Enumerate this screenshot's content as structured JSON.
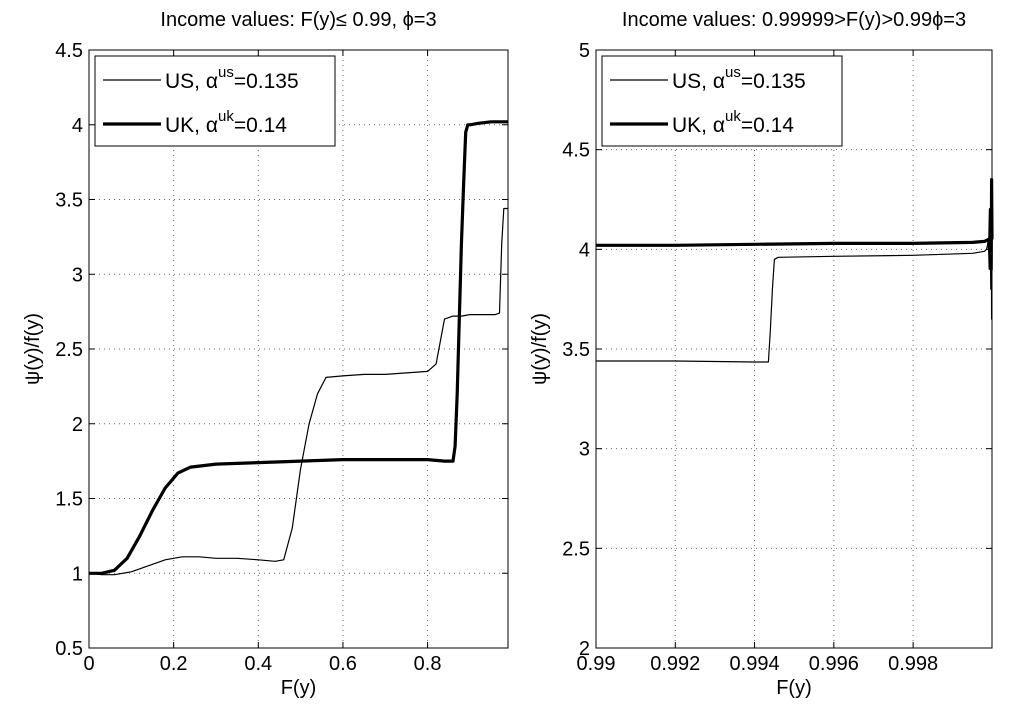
{
  "chart_data": [
    {
      "type": "line",
      "title": "Income values: F(y)≤ 0.99, ϕ=3",
      "xlabel": "F(y)",
      "ylabel": "ψ(y)/f(y)",
      "xlim": [
        0,
        0.99
      ],
      "ylim": [
        0.5,
        4.5
      ],
      "xticks": [
        0,
        0.2,
        0.4,
        0.6,
        0.8
      ],
      "xtick_labels": [
        "0",
        "0.2",
        "0.4",
        "0.6",
        "0.8"
      ],
      "yticks": [
        0.5,
        1,
        1.5,
        2,
        2.5,
        3,
        3.5,
        4,
        4.5
      ],
      "ytick_labels": [
        "0.5",
        "1",
        "1.5",
        "2",
        "2.5",
        "3",
        "3.5",
        "4",
        "4.5"
      ],
      "grid": true,
      "legend_position": "top-left",
      "series": [
        {
          "name": "US, α^us=0.135",
          "legend_base": "US, α",
          "legend_sup": "us",
          "legend_tail": "=0.135",
          "line_width": 1.2,
          "x": [
            0,
            0.03,
            0.06,
            0.1,
            0.14,
            0.18,
            0.22,
            0.26,
            0.3,
            0.35,
            0.4,
            0.44,
            0.46,
            0.48,
            0.5,
            0.52,
            0.54,
            0.56,
            0.6,
            0.65,
            0.7,
            0.75,
            0.8,
            0.82,
            0.83,
            0.84,
            0.86,
            0.88,
            0.9,
            0.92,
            0.94,
            0.96,
            0.97,
            0.975,
            0.98,
            0.99
          ],
          "y": [
            1.0,
            0.99,
            0.99,
            1.01,
            1.05,
            1.09,
            1.11,
            1.11,
            1.1,
            1.1,
            1.09,
            1.08,
            1.09,
            1.3,
            1.7,
            2.0,
            2.2,
            2.31,
            2.32,
            2.33,
            2.33,
            2.34,
            2.35,
            2.4,
            2.55,
            2.7,
            2.72,
            2.72,
            2.73,
            2.73,
            2.73,
            2.73,
            2.74,
            3.2,
            3.44,
            3.44
          ]
        },
        {
          "name": "UK, α^uk=0.14",
          "legend_base": "UK, α",
          "legend_sup": "uk",
          "legend_tail": "=0.14",
          "line_width": 3.2,
          "x": [
            0,
            0.03,
            0.06,
            0.09,
            0.12,
            0.15,
            0.18,
            0.21,
            0.24,
            0.27,
            0.3,
            0.4,
            0.5,
            0.6,
            0.7,
            0.8,
            0.84,
            0.86,
            0.865,
            0.87,
            0.875,
            0.88,
            0.885,
            0.89,
            0.895,
            0.9,
            0.92,
            0.95,
            0.99
          ],
          "y": [
            1.0,
            1.0,
            1.02,
            1.1,
            1.25,
            1.42,
            1.57,
            1.67,
            1.71,
            1.72,
            1.73,
            1.74,
            1.75,
            1.76,
            1.76,
            1.76,
            1.75,
            1.75,
            1.85,
            2.2,
            2.7,
            3.2,
            3.6,
            3.95,
            4.0,
            4.0,
            4.01,
            4.02,
            4.02
          ]
        }
      ]
    },
    {
      "type": "line",
      "title": "Income values: 0.99999>F(y)>0.99ϕ=3",
      "xlabel": "F(y)",
      "ylabel": "ψ(y)/f(y)",
      "xlim": [
        0.99,
        0.99999
      ],
      "ylim": [
        2,
        5
      ],
      "xticks": [
        0.99,
        0.992,
        0.994,
        0.996,
        0.998
      ],
      "xtick_labels": [
        "0.99",
        "0.992",
        "0.994",
        "0.996",
        "0.998"
      ],
      "yticks": [
        2,
        2.5,
        3,
        3.5,
        4,
        4.5,
        5
      ],
      "ytick_labels": [
        "2",
        "2.5",
        "3",
        "3.5",
        "4",
        "4.5",
        "5"
      ],
      "grid": true,
      "legend_position": "top-left",
      "series": [
        {
          "name": "US, α^us=0.135",
          "legend_base": "US, α",
          "legend_sup": "us",
          "legend_tail": "=0.135",
          "line_width": 1.2,
          "x": [
            0.99,
            0.992,
            0.994,
            0.99435,
            0.9944,
            0.99445,
            0.9945,
            0.9946,
            0.996,
            0.998,
            0.9995,
            0.9998,
            0.99985,
            0.9999,
            0.99992,
            0.99994,
            0.99996,
            0.99997,
            0.99998,
            0.99999
          ],
          "y": [
            3.44,
            3.44,
            3.435,
            3.435,
            3.6,
            3.8,
            3.95,
            3.96,
            3.965,
            3.97,
            3.98,
            3.99,
            4.0,
            4.04,
            3.9,
            4.15,
            3.8,
            4.3,
            3.65,
            4.1
          ]
        },
        {
          "name": "UK, α^uk=0.14",
          "legend_base": "UK, α",
          "legend_sup": "uk",
          "legend_tail": "=0.14",
          "line_width": 3.2,
          "x": [
            0.99,
            0.992,
            0.994,
            0.996,
            0.998,
            0.9995,
            0.9998,
            0.9999,
            0.99993,
            0.99995,
            0.99997,
            0.99998,
            0.99999
          ],
          "y": [
            4.02,
            4.02,
            4.025,
            4.03,
            4.03,
            4.035,
            4.04,
            4.05,
            4.0,
            4.2,
            3.9,
            4.35,
            4.05
          ]
        }
      ]
    }
  ]
}
